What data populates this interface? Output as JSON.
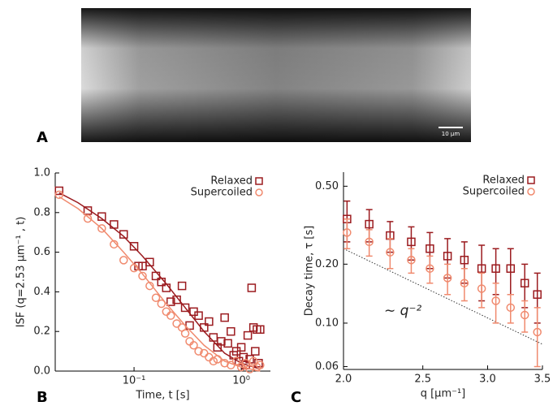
{
  "panels": {
    "a": "A",
    "b": "B",
    "c": "C"
  },
  "image": {
    "scale_bar": "10 μm"
  },
  "chart_data": [
    {
      "type": "scatter",
      "xlabel": "Time, t [s]",
      "ylabel": "ISF (q=2.53 μm⁻¹ , t)",
      "xscale": "log",
      "xlim": [
        0.0184,
        1.87
      ],
      "xticks": [
        {
          "value": 0.1,
          "label": "10⁻¹"
        },
        {
          "value": 1,
          "label": "10⁰"
        }
      ],
      "ylim": [
        0,
        1
      ],
      "yticks": [
        {
          "value": 0,
          "label": "0.0"
        },
        0.2,
        0.4,
        0.6,
        0.8,
        {
          "value": 1,
          "label": "1.0"
        }
      ],
      "legend": "upper right",
      "series": [
        {
          "name": "Relaxed",
          "color": "#9b1b1f",
          "marker": "square",
          "x": [
            0.02,
            0.037,
            0.05,
            0.065,
            0.08,
            0.1,
            0.11,
            0.12,
            0.14,
            0.16,
            0.18,
            0.2,
            0.22,
            0.25,
            0.28,
            0.3,
            0.33,
            0.36,
            0.4,
            0.45,
            0.5,
            0.55,
            0.6,
            0.65,
            0.7,
            0.75,
            0.8,
            0.85,
            0.9,
            0.95,
            1.0,
            1.05,
            1.1,
            1.15,
            1.2,
            1.25,
            1.3,
            1.35,
            1.4,
            1.45,
            1.5
          ],
          "values": [
            0.91,
            0.81,
            0.78,
            0.74,
            0.69,
            0.63,
            0.53,
            0.53,
            0.55,
            0.48,
            0.45,
            0.42,
            0.35,
            0.36,
            0.43,
            0.32,
            0.23,
            0.3,
            0.28,
            0.22,
            0.25,
            0.17,
            0.12,
            0.15,
            0.27,
            0.14,
            0.2,
            0.08,
            0.1,
            0.05,
            0.12,
            0.07,
            0.03,
            0.18,
            0.06,
            0.42,
            0.22,
            0.1,
            0.21,
            0.04,
            0.21
          ],
          "fit_x": [
            0.02,
            0.03,
            0.05,
            0.08,
            0.12,
            0.2,
            0.3,
            0.45,
            0.7,
            1.0,
            1.5
          ],
          "fit_values": [
            0.9,
            0.85,
            0.77,
            0.68,
            0.58,
            0.44,
            0.32,
            0.2,
            0.09,
            0.04,
            0.01
          ]
        },
        {
          "name": "Supercoiled",
          "color": "#f08a6e",
          "marker": "circle",
          "x": [
            0.02,
            0.037,
            0.05,
            0.065,
            0.08,
            0.1,
            0.12,
            0.14,
            0.16,
            0.18,
            0.2,
            0.22,
            0.25,
            0.28,
            0.3,
            0.33,
            0.36,
            0.4,
            0.45,
            0.5,
            0.55,
            0.6,
            0.7,
            0.8,
            0.9,
            1.0,
            1.1,
            1.2,
            1.3,
            1.4,
            1.5
          ],
          "values": [
            0.89,
            0.77,
            0.72,
            0.64,
            0.56,
            0.52,
            0.48,
            0.43,
            0.37,
            0.34,
            0.3,
            0.28,
            0.24,
            0.22,
            0.19,
            0.15,
            0.13,
            0.1,
            0.09,
            0.07,
            0.05,
            0.06,
            0.04,
            0.03,
            0.05,
            0.02,
            0.04,
            0.01,
            0.05,
            0.02,
            0.03
          ],
          "fit_x": [
            0.02,
            0.03,
            0.05,
            0.08,
            0.12,
            0.2,
            0.3,
            0.45,
            0.7,
            1.0,
            1.5
          ],
          "fit_values": [
            0.88,
            0.82,
            0.72,
            0.6,
            0.49,
            0.34,
            0.23,
            0.13,
            0.05,
            0.02,
            0.0
          ]
        }
      ]
    },
    {
      "type": "errorbar",
      "xlabel": "q [μm⁻¹]",
      "ylabel": "Decay time, τ [s]",
      "xscale": "log",
      "xlim": [
        2.0,
        3.5
      ],
      "xticks": [
        {
          "value": 2,
          "label": "2.0"
        },
        2.5,
        {
          "value": 3,
          "label": "3.0"
        },
        3.5
      ],
      "yscale": "log",
      "ylim": [
        0.058,
        0.59
      ],
      "yticks": [
        0.06,
        {
          "value": 0.1,
          "label": "0.10"
        },
        {
          "value": 0.2,
          "label": "0.20"
        },
        {
          "value": 0.5,
          "label": "0.50"
        }
      ],
      "legend": "upper right",
      "annotation": "∼ q⁻²",
      "reference_line": {
        "x": [
          2.0,
          3.5
        ],
        "values": [
          0.24,
          0.078
        ]
      },
      "series": [
        {
          "name": "Relaxed",
          "color": "#9b1b1f",
          "marker": "square",
          "x": [
            2.02,
            2.15,
            2.28,
            2.42,
            2.55,
            2.68,
            2.81,
            2.95,
            3.07,
            3.2,
            3.33,
            3.45
          ],
          "values": [
            0.34,
            0.32,
            0.28,
            0.26,
            0.24,
            0.22,
            0.21,
            0.19,
            0.19,
            0.19,
            0.16,
            0.14
          ],
          "errors": [
            0.08,
            0.06,
            0.05,
            0.05,
            0.05,
            0.05,
            0.05,
            0.06,
            0.05,
            0.05,
            0.04,
            0.04
          ]
        },
        {
          "name": "Supercoiled",
          "color": "#f08a6e",
          "marker": "circle",
          "x": [
            2.02,
            2.15,
            2.28,
            2.42,
            2.55,
            2.68,
            2.81,
            2.95,
            3.07,
            3.2,
            3.33,
            3.45
          ],
          "values": [
            0.29,
            0.26,
            0.23,
            0.21,
            0.19,
            0.17,
            0.16,
            0.15,
            0.13,
            0.12,
            0.11,
            0.09
          ],
          "errors": [
            0.05,
            0.04,
            0.04,
            0.03,
            0.03,
            0.03,
            0.03,
            0.03,
            0.03,
            0.02,
            0.02,
            0.03
          ]
        }
      ]
    }
  ]
}
